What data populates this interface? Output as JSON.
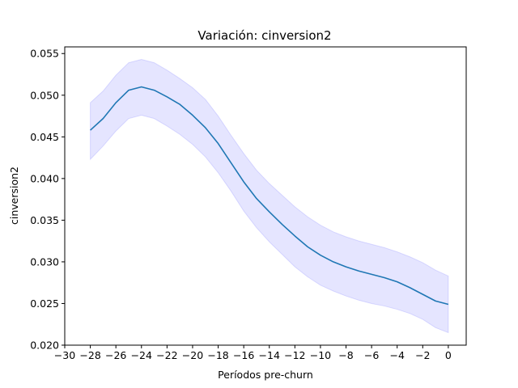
{
  "chart_data": {
    "type": "line",
    "title": "Variación: cinversion2",
    "xlabel": "Períodos pre-churn",
    "ylabel": "cinversion2",
    "xlim": [
      -30,
      1.4
    ],
    "ylim": [
      0.02,
      0.0558
    ],
    "x_ticks": [
      -30,
      -28,
      -26,
      -24,
      -22,
      -20,
      -18,
      -16,
      -14,
      -12,
      -10,
      -8,
      -6,
      -4,
      -2,
      0
    ],
    "x_tick_labels": [
      "−30",
      "−28",
      "−26",
      "−24",
      "−22",
      "−20",
      "−18",
      "−16",
      "−14",
      "−12",
      "−10",
      "−8",
      "−6",
      "−4",
      "−2",
      "0"
    ],
    "y_ticks": [
      0.02,
      0.025,
      0.03,
      0.035,
      0.04,
      0.045,
      0.05,
      0.055
    ],
    "y_tick_labels": [
      "0.020",
      "0.025",
      "0.030",
      "0.035",
      "0.040",
      "0.045",
      "0.050",
      "0.055"
    ],
    "grid": false,
    "line_color": "#1f77b4",
    "band_color": "#0000ff",
    "x": [
      -28,
      -27,
      -26,
      -25,
      -24,
      -23,
      -22,
      -21,
      -20,
      -19,
      -18,
      -17,
      -16,
      -15,
      -14,
      -13,
      -12,
      -11,
      -10,
      -9,
      -8,
      -7,
      -6,
      -5,
      -4,
      -3,
      -2,
      -1,
      0
    ],
    "series": [
      {
        "values": [
          0.0458,
          0.0472,
          0.0491,
          0.0506,
          0.051,
          0.0506,
          0.0498,
          0.0489,
          0.0476,
          0.0461,
          0.0442,
          0.0419,
          0.0396,
          0.0376,
          0.036,
          0.0345,
          0.0331,
          0.0318,
          0.0308,
          0.03,
          0.0294,
          0.0289,
          0.0285,
          0.0281,
          0.0276,
          0.0269,
          0.0261,
          0.0253,
          0.0249
        ],
        "lower": [
          0.0423,
          0.0439,
          0.0457,
          0.0472,
          0.0476,
          0.0472,
          0.0463,
          0.0453,
          0.0441,
          0.0426,
          0.0407,
          0.0385,
          0.0361,
          0.0341,
          0.0324,
          0.0309,
          0.0294,
          0.0282,
          0.0272,
          0.0265,
          0.0259,
          0.0254,
          0.025,
          0.0247,
          0.0243,
          0.0238,
          0.0231,
          0.0221,
          0.0215
        ],
        "upper": [
          0.0491,
          0.0505,
          0.0524,
          0.0539,
          0.0543,
          0.0539,
          0.053,
          0.052,
          0.0509,
          0.0495,
          0.0475,
          0.0452,
          0.043,
          0.041,
          0.0394,
          0.038,
          0.0366,
          0.0354,
          0.0344,
          0.0336,
          0.033,
          0.0325,
          0.0321,
          0.0317,
          0.0312,
          0.0306,
          0.0299,
          0.029,
          0.0283
        ]
      }
    ]
  }
}
